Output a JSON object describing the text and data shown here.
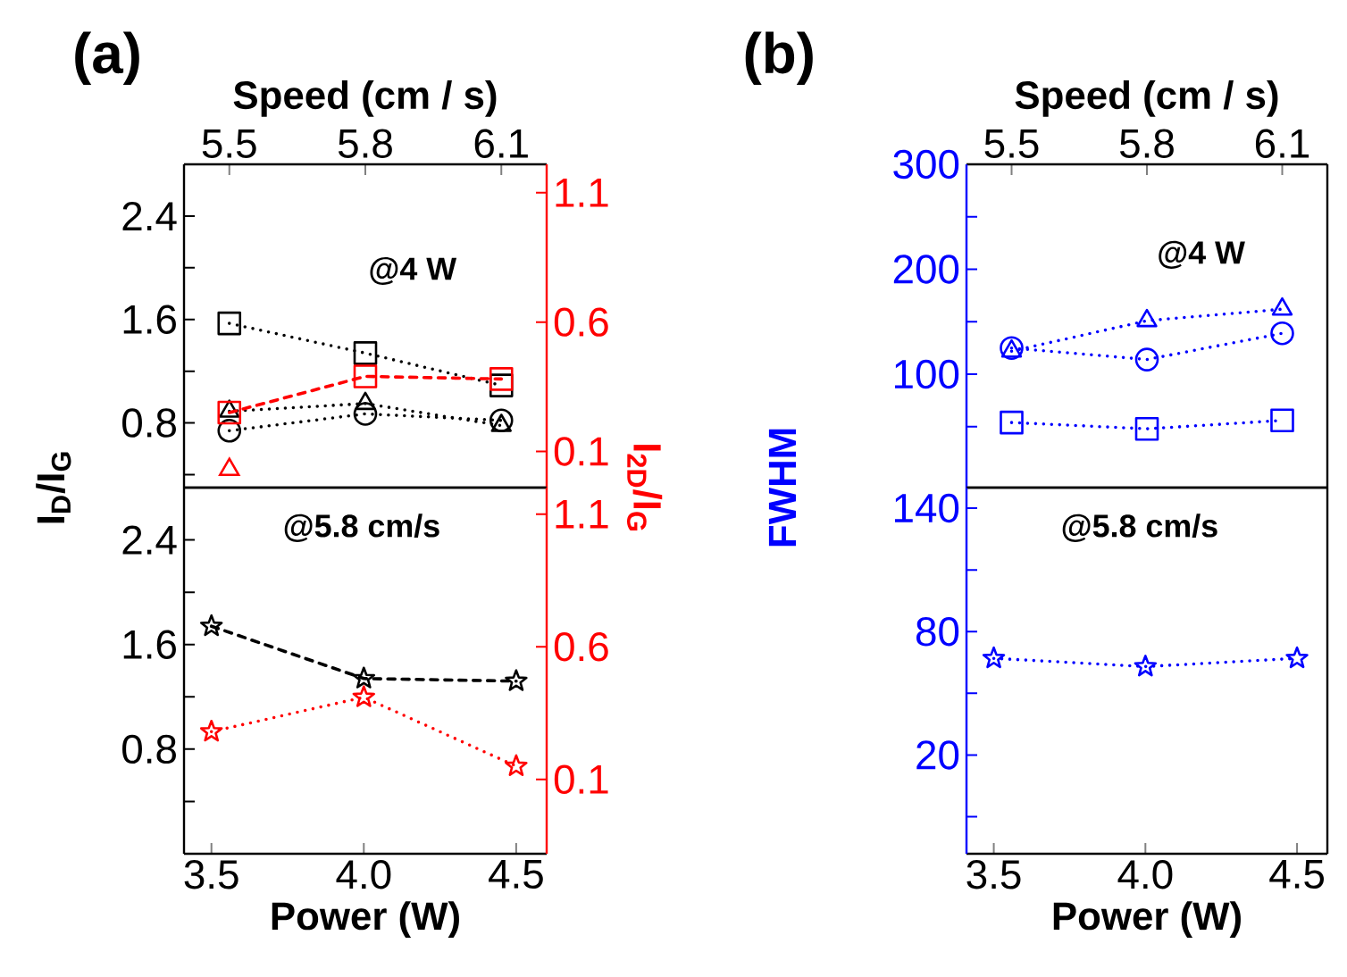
{
  "chart_data": [
    {
      "type": "line",
      "title": "(a)",
      "xlabel": "Speed (cm / s)",
      "ylabel": "I$_{D}$/I$_{G}$",
      "y2label": "I$_{2D}$/I$_{G}$",
      "annotations": [
        "@4 W"
      ],
      "x": [
        5.5,
        5.8,
        6.1
      ],
      "xlim": [
        5.4,
        6.2
      ],
      "xticks": [
        5.5,
        5.8,
        6.1
      ],
      "ylim": [
        0.3,
        2.8
      ],
      "yticks": [
        {
          "value": 0.4,
          "label": null
        },
        0.8,
        {
          "value": 1.2,
          "label": null
        },
        1.6,
        {
          "value": 2.0,
          "label": null
        },
        2.4
      ],
      "y2lim": [
        -0.04,
        1.21
      ],
      "y2ticks": [
        0.1,
        0.6,
        1.1
      ],
      "series": [
        {
          "color": "#000000",
          "marker": "square",
          "line_style": "dotted",
          "values": [
            1.57,
            1.34,
            1.09
          ]
        },
        {
          "color": "#000000",
          "marker": "circle",
          "line_style": "dotted",
          "values": [
            0.74,
            0.87,
            0.82
          ]
        },
        {
          "color": "#000000",
          "marker": "triangle",
          "line_style": "dotted",
          "values": [
            0.89,
            0.95,
            0.78
          ]
        },
        {
          "color": "#ff0000",
          "marker": "square",
          "line_style": "dashed",
          "axis": "y2",
          "values": [
            0.25,
            0.39,
            0.38
          ]
        },
        {
          "type": "scatter",
          "color": "#ff0000",
          "marker": "triangle",
          "axis": "y2",
          "values": [
            0.03,
            null,
            null
          ]
        }
      ]
    },
    {
      "type": "line",
      "xlabel": "Power (W)",
      "annotations": [
        "@5.8 cm/s"
      ],
      "x": [
        3.5,
        4,
        4.5
      ],
      "xlim": [
        3.41,
        4.6
      ],
      "xticks": [
        3.5,
        {
          "value": 4,
          "label": "4.0"
        },
        4.5
      ],
      "ylim": [
        0,
        2.8
      ],
      "yticks": [
        {
          "value": 0.4,
          "label": null
        },
        0.8,
        {
          "value": 1.2,
          "label": null
        },
        1.6,
        {
          "value": 2.0,
          "label": null
        },
        2.4
      ],
      "y2lim": [
        -0.18,
        1.2
      ],
      "y2ticks": [
        0.1,
        0.6,
        1.1
      ],
      "series": [
        {
          "color": "#000000",
          "marker": "star",
          "line_style": "dashed",
          "values": [
            1.74,
            1.34,
            1.32
          ]
        },
        {
          "color": "#ff0000",
          "marker": "star",
          "line_style": "dotted",
          "axis": "y2",
          "values": [
            0.28,
            0.41,
            0.15
          ]
        }
      ]
    },
    {
      "type": "line",
      "title": "(b)",
      "xlabel": "Speed (cm / s)",
      "ylabel": "FWHM",
      "annotations": [
        "@4 W"
      ],
      "x": [
        5.5,
        5.8,
        6.1
      ],
      "xlim": [
        5.4,
        6.2
      ],
      "xticks": [
        5.5,
        5.8,
        6.1
      ],
      "ylim": [
        -8,
        300
      ],
      "yticks": [
        {
          "value": 50,
          "label": null
        },
        100,
        {
          "value": 150,
          "label": null
        },
        200,
        {
          "value": 250,
          "label": null
        },
        300
      ],
      "series": [
        {
          "color": "#0000ff",
          "marker": "square",
          "line_style": "dotted",
          "values": [
            54,
            48,
            56
          ]
        },
        {
          "color": "#0000ff",
          "marker": "circle",
          "line_style": "dotted",
          "values": [
            125,
            114,
            139
          ]
        },
        {
          "color": "#0000ff",
          "marker": "triangle",
          "line_style": "dotted",
          "values": [
            122,
            151,
            162
          ]
        }
      ]
    },
    {
      "type": "line",
      "xlabel": "Power (W)",
      "annotations": [
        "@5.8 cm/s"
      ],
      "x": [
        3.5,
        4,
        4.5
      ],
      "xlim": [
        3.41,
        4.6
      ],
      "xticks": [
        3.5,
        {
          "value": 4,
          "label": "4.0"
        },
        4.5
      ],
      "ylim": [
        -28,
        150
      ],
      "yticks": [
        {
          "value": -10,
          "label": null
        },
        20,
        {
          "value": 50,
          "label": null
        },
        80,
        {
          "value": 110,
          "label": null
        },
        140
      ],
      "series": [
        {
          "color": "#0000ff",
          "marker": "star",
          "line_style": "dotted",
          "values": [
            67,
            63,
            67
          ]
        }
      ]
    }
  ]
}
